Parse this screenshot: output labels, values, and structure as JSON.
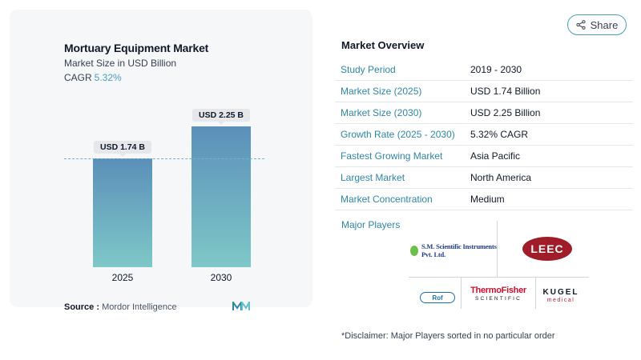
{
  "chart_card": {
    "title": "Mortuary Equipment Market",
    "subtitle": "Market Size in USD Billion",
    "cagr_label": "CAGR",
    "cagr_value": "5.32%",
    "source_label": "Source :",
    "source_value": "Mordor Intelligence"
  },
  "chart_data": {
    "type": "bar",
    "categories": [
      "2025",
      "2030"
    ],
    "values": [
      1.74,
      2.25
    ],
    "data_labels": [
      "USD 1.74 B",
      "USD 2.25 B"
    ],
    "title": "Mortuary Equipment Market",
    "subtitle": "Market Size in USD Billion",
    "xlabel": "",
    "ylabel": "",
    "ylim": [
      0,
      2.5
    ],
    "grid": false,
    "legend": "none",
    "reference_line": 1.74,
    "colors": {
      "bar_top": "#5b8fb9",
      "bar_bottom": "#7ec8c8",
      "ref_line": "#6fb5cc"
    }
  },
  "share": {
    "label": "Share",
    "icon": "share-icon"
  },
  "overview": {
    "title": "Market Overview",
    "rows": [
      {
        "key": "Study Period",
        "value": "2019 - 2030"
      },
      {
        "key": "Market Size (2025)",
        "value": "USD 1.74 Billion"
      },
      {
        "key": "Market Size (2030)",
        "value": "USD 2.25 Billion"
      },
      {
        "key": "Growth Rate (2025 - 2030)",
        "value": "5.32% CAGR"
      },
      {
        "key": "Fastest Growing Market",
        "value": "Asia Pacific"
      },
      {
        "key": "Largest Market",
        "value": "North America"
      },
      {
        "key": "Market Concentration",
        "value": "Medium"
      }
    ],
    "players_label": "Major Players",
    "players": {
      "sm": "S.M. Scientific Instruments Pvt. Ltd.",
      "leec": "LEEC",
      "rof": "Rof",
      "thermo_top": "ThermoFisher",
      "thermo_bottom": "SCIENTIFIC",
      "kugel_top": "KUGEL",
      "kugel_bottom": "medical"
    },
    "disclaimer": "*Disclaimer: Major Players sorted in no particular order"
  },
  "colors": {
    "accent": "#4a9fbf",
    "link": "#2f86a8"
  }
}
